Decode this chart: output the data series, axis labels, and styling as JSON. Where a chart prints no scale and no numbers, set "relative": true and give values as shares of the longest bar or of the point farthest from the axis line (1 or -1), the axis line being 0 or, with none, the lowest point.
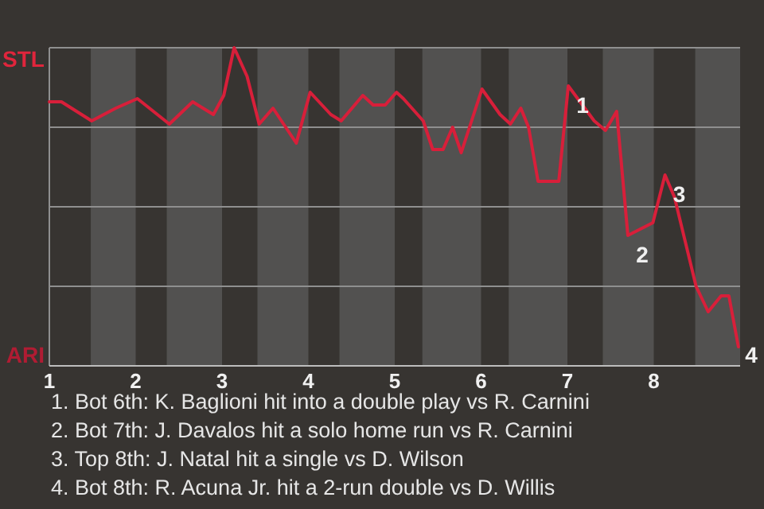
{
  "chart_data": {
    "type": "line",
    "relative": true,
    "grid": "y",
    "marker": "none",
    "line_style": "solid",
    "xlim": [
      1,
      9
    ],
    "xticks": [
      1,
      2,
      3,
      4,
      5,
      6,
      7,
      8
    ],
    "bands": [
      {
        "axis": "x",
        "from": 1.48,
        "to": 2,
        "color": "#525150"
      },
      {
        "axis": "x",
        "from": 2.36,
        "to": 3,
        "color": "#525150"
      },
      {
        "axis": "x",
        "from": 3.41,
        "to": 4,
        "color": "#525150"
      },
      {
        "axis": "x",
        "from": 4.36,
        "to": 5,
        "color": "#525150"
      },
      {
        "axis": "x",
        "from": 5.32,
        "to": 6,
        "color": "#525150"
      },
      {
        "axis": "x",
        "from": 6.32,
        "to": 7,
        "color": "#525150"
      },
      {
        "axis": "x",
        "from": 7.41,
        "to": 8,
        "color": "#525150"
      },
      {
        "axis": "x",
        "from": 8.48,
        "to": 9,
        "color": "#525150"
      }
    ],
    "series": [
      {
        "color": "#d81f3a",
        "x": [
          1,
          1.14,
          1.49,
          1.77,
          2.02,
          2.39,
          2.66,
          2.9,
          3.02,
          3.14,
          3.29,
          3.43,
          3.59,
          3.86,
          4.02,
          4.26,
          4.38,
          4.63,
          4.75,
          4.89,
          5.02,
          5.1,
          5.33,
          5.44,
          5.56,
          5.67,
          5.77,
          6.01,
          6.22,
          6.34,
          6.46,
          6.55,
          6.66,
          6.9,
          7.01,
          7.31,
          7.44,
          7.57,
          7.7,
          7.99,
          8.13,
          8.24,
          8.49,
          8.63,
          8.78,
          8.87,
          8.98
        ],
        "values": [
          0.83,
          0.83,
          0.77,
          0.81,
          0.84,
          0.76,
          0.83,
          0.79,
          0.85,
          1,
          0.91,
          0.76,
          0.81,
          0.7,
          0.86,
          0.79,
          0.77,
          0.85,
          0.82,
          0.82,
          0.86,
          0.84,
          0.77,
          0.68,
          0.68,
          0.75,
          0.67,
          0.87,
          0.79,
          0.76,
          0.81,
          0.75,
          0.58,
          0.58,
          0.88,
          0.77,
          0.74,
          0.8,
          0.41,
          0.45,
          0.6,
          0.53,
          0.25,
          0.17,
          0.22,
          0.22,
          0.06
        ]
      }
    ],
    "annotations": [
      "STL",
      "ARI",
      {
        "text": "1",
        "x": 7.01,
        "y": 0.88
      },
      {
        "text": "2",
        "x": 7.7,
        "y": 0.41
      },
      {
        "text": "3",
        "x": 8.13,
        "y": 0.6
      },
      {
        "text": "4",
        "x": 8.98,
        "y": 0.06
      },
      "1. Bot 6th: K. Baglioni hit into a double play vs R. Carnini",
      "2. Bot 7th: J. Davalos hit a solo home run vs R. Carnini",
      "3. Top 8th: J. Natal hit a single vs D. Wilson",
      "4. Bot 8th: R. Acuna Jr. hit a 2-run double vs D. Willis"
    ]
  }
}
